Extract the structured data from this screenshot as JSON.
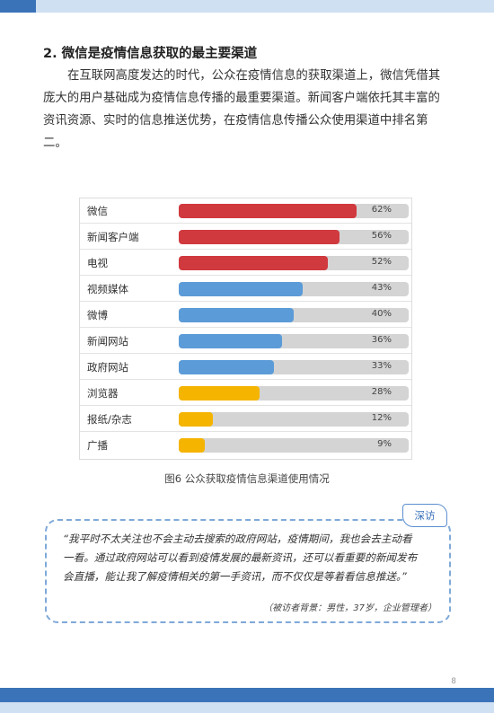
{
  "heading": "2. 微信是疫情信息获取的最主要渠道",
  "paragraph": "在互联网高度发达的时代，公众在疫情信息的获取渠道上，微信凭借其庞大的用户基础成为疫情信息传播的最重要渠道。新闻客户端依托其丰富的资讯资源、实时的信息推送优势，在疫情信息传播公众使用渠道中排名第二。",
  "chart_data": {
    "type": "bar",
    "orientation": "horizontal",
    "categories": [
      "微信",
      "新闻客户端",
      "电视",
      "视频媒体",
      "微博",
      "新闻网站",
      "政府网站",
      "浏览器",
      "报纸/杂志",
      "广播"
    ],
    "values": [
      62,
      56,
      52,
      43,
      40,
      36,
      33,
      28,
      12,
      9
    ],
    "labels": [
      "62%",
      "56%",
      "52%",
      "43%",
      "40%",
      "36%",
      "33%",
      "28%",
      "12%",
      "9%"
    ],
    "bar_colors": [
      "#d0393e",
      "#d0393e",
      "#d0393e",
      "#5b9bd8",
      "#5b9bd8",
      "#5b9bd8",
      "#5b9bd8",
      "#f5b400",
      "#f5b400",
      "#f5b400"
    ],
    "xlim": [
      0,
      80
    ],
    "track_color": "#d4d4d4"
  },
  "caption": "图6  公众获取疫情信息渠道使用情况",
  "interview": {
    "tag": "深访",
    "quote": "“我平时不太关注也不会主动去搜索的政府网站，疫情期间，我也会去主动看一看。通过政府网站可以看到疫情发展的最新资讯，还可以看重要的新闻发布会直播，能让我了解疫情相关的第一手资讯，而不仅仅是等着看信息推送。”",
    "attribution": "（被访者背景：男性，37岁，企业管理者）"
  },
  "page_number": "8",
  "colors": {
    "accent": "#3b73b9",
    "accent_light": "#cfe0f2"
  }
}
